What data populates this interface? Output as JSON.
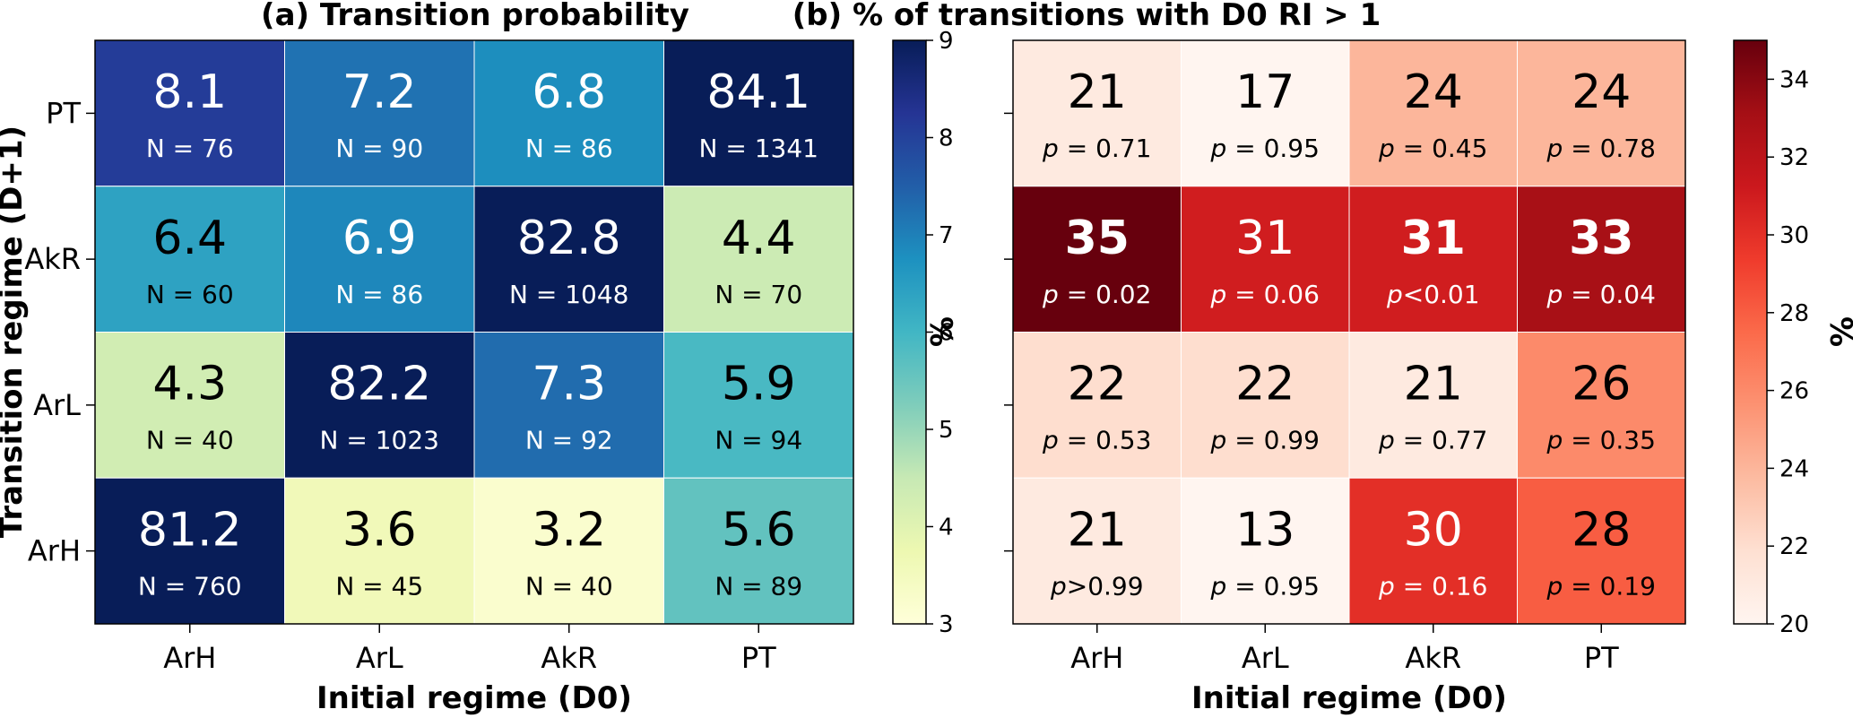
{
  "chart_data": [
    {
      "type": "heatmap",
      "title": "(a) Transition probability",
      "xlabel": "Initial regime (D0)",
      "ylabel": "Transition regime (D+1)",
      "x_categories": [
        "ArH",
        "ArL",
        "AkR",
        "PT"
      ],
      "y_categories": [
        "PT",
        "AkR",
        "ArL",
        "ArH"
      ],
      "values": [
        [
          8.1,
          7.2,
          6.8,
          84.1
        ],
        [
          6.4,
          6.9,
          82.8,
          4.4
        ],
        [
          4.3,
          82.2,
          7.3,
          5.9
        ],
        [
          81.2,
          3.6,
          3.2,
          5.6
        ]
      ],
      "labels": [
        [
          "8.1",
          "7.2",
          "6.8",
          "84.1"
        ],
        [
          "6.4",
          "6.9",
          "82.8",
          "4.4"
        ],
        [
          "4.3",
          "82.2",
          "7.3",
          "5.9"
        ],
        [
          "81.2",
          "3.6",
          "3.2",
          "5.6"
        ]
      ],
      "sublabels": [
        [
          "N = 76",
          "N = 90",
          "N = 86",
          "N = 1341"
        ],
        [
          "N = 60",
          "N = 86",
          "N = 1048",
          "N = 70"
        ],
        [
          "N = 40",
          "N = 1023",
          "N = 92",
          "N = 94"
        ],
        [
          "N = 760",
          "N = 45",
          "N = 40",
          "N = 89"
        ]
      ],
      "colorbar": {
        "label": "%",
        "range": [
          3,
          9
        ],
        "ticks": [
          "3",
          "4",
          "5",
          "6",
          "7",
          "8",
          "9"
        ],
        "colormap": "YlGnBu"
      }
    },
    {
      "type": "heatmap",
      "title": "(b) % of transitions with D0 RI > 1",
      "xlabel": "Initial regime (D0)",
      "ylabel": "",
      "x_categories": [
        "ArH",
        "ArL",
        "AkR",
        "PT"
      ],
      "y_categories": [
        "PT",
        "AkR",
        "ArL",
        "ArH"
      ],
      "values": [
        [
          21,
          17,
          24,
          24
        ],
        [
          35,
          31,
          31,
          33
        ],
        [
          22,
          22,
          21,
          26
        ],
        [
          21,
          13,
          30,
          28
        ]
      ],
      "labels": [
        [
          "21",
          "17",
          "24",
          "24"
        ],
        [
          "35",
          "31",
          "31",
          "33"
        ],
        [
          "22",
          "22",
          "21",
          "26"
        ],
        [
          "21",
          "13",
          "30",
          "28"
        ]
      ],
      "sublabels": [
        [
          "p = 0.71",
          "p = 0.95",
          "p = 0.45",
          "p = 0.78"
        ],
        [
          "p = 0.02",
          "p = 0.06",
          "p<0.01",
          "p = 0.04"
        ],
        [
          "p = 0.53",
          "p = 0.99",
          "p = 0.77",
          "p = 0.35"
        ],
        [
          "p>0.99",
          "p = 0.95",
          "p = 0.16",
          "p = 0.19"
        ]
      ],
      "bold": [
        [
          false,
          false,
          false,
          false
        ],
        [
          true,
          false,
          true,
          true
        ],
        [
          false,
          false,
          false,
          false
        ],
        [
          false,
          false,
          false,
          false
        ]
      ],
      "colorbar": {
        "label": "%",
        "range": [
          20,
          35
        ],
        "ticks": [
          "20",
          "22",
          "24",
          "26",
          "28",
          "30",
          "32",
          "34"
        ],
        "colormap": "Reds"
      }
    }
  ]
}
